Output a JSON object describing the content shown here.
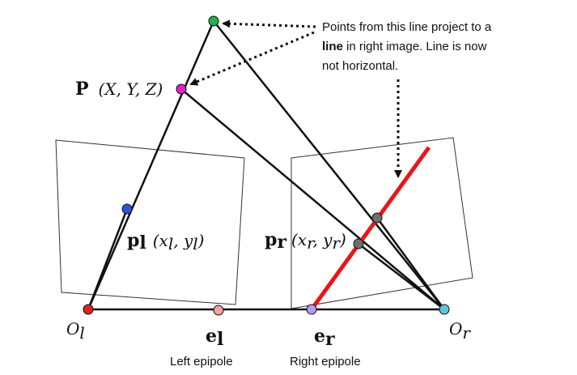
{
  "annotation": {
    "line1": "Points from this line project to a",
    "line2_bold": "line",
    "line2_rest": " in right image. Line is now",
    "line3": "not horizontal."
  },
  "points": {
    "P": {
      "bold": "P",
      "coords": "(X, Y, Z)"
    },
    "pl": {
      "bold": "p",
      "sub": "l",
      "coords": "(x",
      "coords_sub1": "l",
      "coords_mid": ", y",
      "coords_sub2": "l",
      "coords_end": ")"
    },
    "pr": {
      "bold": "p",
      "sub": "r",
      "coords": "(x",
      "coords_sub1": "r",
      "coords_mid": ", y",
      "coords_sub2": "r",
      "coords_end": ")"
    },
    "Ol": {
      "main": "O",
      "sub": "l"
    },
    "Or": {
      "main": "O",
      "sub": "r"
    },
    "el": {
      "bold": "e",
      "sub": "l"
    },
    "er": {
      "bold": "e",
      "sub": "r"
    }
  },
  "captions": {
    "left_epipole": "Left epipole",
    "right_epipole": "Right epipole"
  },
  "colors": {
    "epipolar_line": "#e8161b",
    "top_point": "#22b14c",
    "P_point": "#e61ec8",
    "pl_point": "#2f4fe0",
    "Ol_point": "#d9252b",
    "el_point": "#f2a0a0",
    "er_point": "#b49cf0",
    "Or_point": "#5bc6e0",
    "gray_point": "#6f6f6f"
  }
}
